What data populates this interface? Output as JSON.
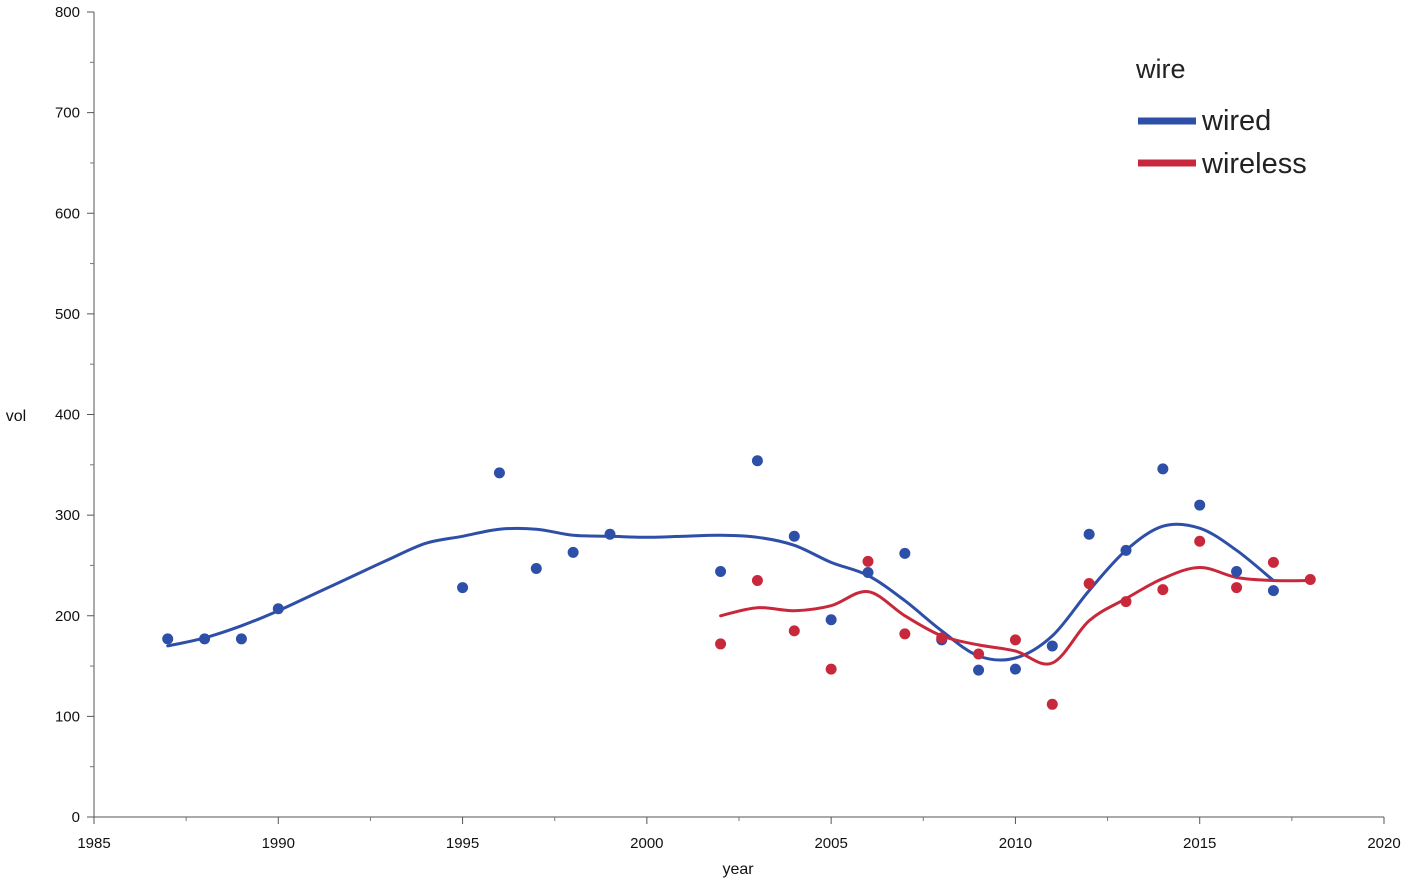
{
  "chart_data": {
    "type": "scatter",
    "title": "",
    "xlabel": "year",
    "ylabel": "vol",
    "xlim": [
      1985,
      2020
    ],
    "ylim": [
      0,
      800
    ],
    "x_ticks": [
      1985,
      1990,
      1995,
      2000,
      2005,
      2010,
      2015,
      2020
    ],
    "x_minor_step": 2.5,
    "y_ticks": [
      0,
      100,
      200,
      300,
      400,
      500,
      600,
      700,
      800
    ],
    "y_minor_step": 50,
    "grid": false,
    "legend": {
      "title": "wire",
      "position": "top-right"
    },
    "series": [
      {
        "name": "wired",
        "color": "#2E4FA8",
        "points": [
          [
            1987,
            177
          ],
          [
            1988,
            177
          ],
          [
            1989,
            177
          ],
          [
            1990,
            207
          ],
          [
            1995,
            228
          ],
          [
            1996,
            342
          ],
          [
            1997,
            247
          ],
          [
            1998,
            263
          ],
          [
            1999,
            281
          ],
          [
            2002,
            244
          ],
          [
            2003,
            354
          ],
          [
            2004,
            279
          ],
          [
            2005,
            196
          ],
          [
            2006,
            243
          ],
          [
            2007,
            262
          ],
          [
            2008,
            176
          ],
          [
            2009,
            146
          ],
          [
            2010,
            147
          ],
          [
            2011,
            170
          ],
          [
            2012,
            281
          ],
          [
            2013,
            265
          ],
          [
            2014,
            346
          ],
          [
            2015,
            310
          ],
          [
            2016,
            244
          ],
          [
            2017,
            225
          ]
        ],
        "smooth": [
          [
            1987,
            170
          ],
          [
            1988,
            178
          ],
          [
            1989,
            190
          ],
          [
            1990,
            205
          ],
          [
            1991,
            222
          ],
          [
            1992,
            239
          ],
          [
            1993,
            256
          ],
          [
            1994,
            272
          ],
          [
            1995,
            279
          ],
          [
            1996,
            286
          ],
          [
            1997,
            286
          ],
          [
            1998,
            280
          ],
          [
            1999,
            279
          ],
          [
            2000,
            278
          ],
          [
            2001,
            279
          ],
          [
            2002,
            280
          ],
          [
            2003,
            278
          ],
          [
            2004,
            270
          ],
          [
            2005,
            253
          ],
          [
            2006,
            240
          ],
          [
            2007,
            215
          ],
          [
            2008,
            185
          ],
          [
            2009,
            160
          ],
          [
            2010,
            158
          ],
          [
            2011,
            180
          ],
          [
            2012,
            225
          ],
          [
            2013,
            265
          ],
          [
            2014,
            289
          ],
          [
            2015,
            287
          ],
          [
            2016,
            265
          ],
          [
            2017,
            235
          ]
        ]
      },
      {
        "name": "wireless",
        "color": "#C8283C",
        "points": [
          [
            2002,
            172
          ],
          [
            2003,
            235
          ],
          [
            2004,
            185
          ],
          [
            2005,
            147
          ],
          [
            2006,
            254
          ],
          [
            2007,
            182
          ],
          [
            2008,
            178
          ],
          [
            2009,
            162
          ],
          [
            2010,
            176
          ],
          [
            2011,
            112
          ],
          [
            2012,
            232
          ],
          [
            2013,
            214
          ],
          [
            2014,
            226
          ],
          [
            2015,
            274
          ],
          [
            2016,
            228
          ],
          [
            2017,
            253
          ],
          [
            2018,
            236
          ]
        ],
        "smooth": [
          [
            2002,
            200
          ],
          [
            2003,
            208
          ],
          [
            2004,
            205
          ],
          [
            2005,
            210
          ],
          [
            2006,
            224
          ],
          [
            2007,
            200
          ],
          [
            2008,
            180
          ],
          [
            2009,
            171
          ],
          [
            2010,
            165
          ],
          [
            2011,
            153
          ],
          [
            2012,
            195
          ],
          [
            2013,
            217
          ],
          [
            2014,
            237
          ],
          [
            2015,
            248
          ],
          [
            2016,
            238
          ],
          [
            2017,
            235
          ],
          [
            2018,
            235
          ]
        ]
      }
    ]
  }
}
